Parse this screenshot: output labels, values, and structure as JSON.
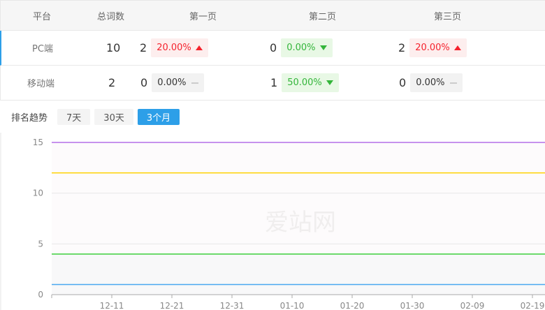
{
  "table": {
    "headers": [
      "平台",
      "总词数",
      "第一页",
      "第二页",
      "第三页"
    ],
    "rows": [
      {
        "platform": "PC端",
        "total": "10",
        "pages": [
          {
            "count": "2",
            "pct": "20.00%",
            "trend": "up"
          },
          {
            "count": "0",
            "pct": "0.00%",
            "trend": "down"
          },
          {
            "count": "2",
            "pct": "20.00%",
            "trend": "up"
          }
        ]
      },
      {
        "platform": "移动端",
        "total": "2",
        "pages": [
          {
            "count": "0",
            "pct": "0.00%",
            "trend": "flat"
          },
          {
            "count": "1",
            "pct": "50.00%",
            "trend": "down"
          },
          {
            "count": "0",
            "pct": "0.00%",
            "trend": "flat"
          }
        ]
      }
    ]
  },
  "filters": {
    "label": "排名趋势",
    "options": [
      "7天",
      "30天",
      "3个月"
    ],
    "selected": "3个月"
  },
  "colors": {
    "accent": "#2d9fe8",
    "up": "#f5222d",
    "down": "#33b53a"
  },
  "watermark": "爱站网",
  "chart_data": {
    "type": "line",
    "x_ticks": [
      "12-11",
      "12-21",
      "12-31",
      "01-10",
      "01-20",
      "01-30",
      "02-09",
      "02-19"
    ],
    "y_ticks": [
      0,
      5,
      10,
      15
    ],
    "ylim": [
      0,
      15
    ],
    "grid": true,
    "series": [
      {
        "color": "#b36ee8",
        "values": [
          15,
          15
        ]
      },
      {
        "color": "#ffd200",
        "values": [
          12,
          12
        ]
      },
      {
        "color": "#3ccf3c",
        "values": [
          4,
          4
        ]
      },
      {
        "color": "#4aa8f0",
        "values": [
          1,
          1
        ]
      }
    ]
  }
}
